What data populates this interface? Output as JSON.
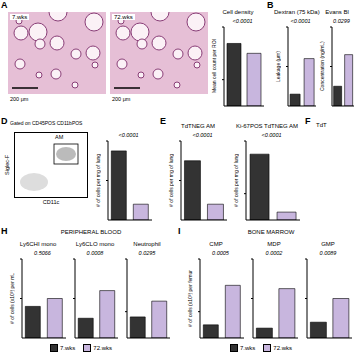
{
  "figure": {
    "panel_letters": [
      "A",
      "B",
      "D",
      "E",
      "F",
      "H",
      "I"
    ],
    "images": {
      "labels": [
        "7.wks",
        "72.wks"
      ],
      "scale_bar": "200 μm"
    },
    "flow": {
      "gate_label": "Gated on CD45POS CD11bPOS",
      "population": "AM",
      "x_label": "CD11c",
      "y_label": "Siglec-F"
    },
    "partial_title": "TdT",
    "groups": [
      "PERIPHERAL BLOOD",
      "BONE MARROW"
    ],
    "legend": [
      {
        "name": "7.wks",
        "color": "#333333"
      },
      {
        "name": "72.wks",
        "color": "#c8b6de"
      }
    ]
  },
  "chart_data": [
    {
      "type": "bar",
      "title": "Cell density",
      "annotation": "<0.0001",
      "y_label": "Mean cell count per ROI",
      "values": [
        95,
        80
      ],
      "ylim": [
        0,
        120
      ],
      "yticks": [
        0,
        40,
        80,
        120
      ],
      "tick_labels": false
    },
    {
      "type": "bar",
      "title": "Dextran (75 kDa)",
      "annotation": "<0.0001",
      "y_label": "Leakage (μm)",
      "values": [
        15,
        60
      ],
      "ylim": [
        0,
        100
      ],
      "yticks": [
        0,
        50,
        100
      ],
      "tick_labels": false
    },
    {
      "type": "bar",
      "title": "Evans Bl",
      "annotation": "0.0299",
      "y_label": "Concentration (ng/mL)",
      "values": [
        5,
        13
      ],
      "ylim": [
        0,
        20
      ],
      "yticks": [
        0,
        10,
        20
      ],
      "tick_labels": false
    },
    {
      "type": "bar",
      "annotation": "<0.0001",
      "y_label": "# of cells per mg of lung",
      "values": [
        350,
        80
      ],
      "ylim": [
        0,
        400
      ],
      "yticks": [
        0,
        200,
        400
      ],
      "tick_labels": false
    },
    {
      "type": "bar",
      "title": "TdTNEG AM",
      "annotation": "<0.0001",
      "y_label": "# of cells per mg of lung",
      "values": [
        150,
        40
      ],
      "ylim": [
        0,
        200
      ],
      "yticks": [
        0,
        100,
        200
      ],
      "tick_labels": false
    },
    {
      "type": "bar",
      "title": "Ki-67POS TdTNEG AM",
      "annotation": "<0.0001",
      "y_label": "# of cells per mg of lung",
      "values": [
        25,
        3
      ],
      "ylim": [
        0,
        30
      ],
      "yticks": [
        0,
        10,
        20,
        30
      ],
      "tick_labels": false
    },
    {
      "type": "bar",
      "title": "Ly6CHI mono",
      "annotation": "0.5066",
      "y_label": "# of cells (x10³) per mL",
      "values": [
        4,
        5
      ],
      "ylim": [
        0,
        10
      ],
      "yticks": [
        0,
        5,
        10
      ],
      "tick_labels": false
    },
    {
      "type": "bar",
      "title": "Ly6CLO mono",
      "annotation": "0.0008",
      "values": [
        5,
        12
      ],
      "ylim": [
        0,
        20
      ],
      "yticks": [
        0,
        10,
        20
      ],
      "tick_labels": false
    },
    {
      "type": "bar",
      "title": "Neutrophil",
      "annotation": "0.0295",
      "values": [
        8,
        14
      ],
      "ylim": [
        0,
        30
      ],
      "yticks": [
        0,
        10,
        20,
        30
      ],
      "tick_labels": false
    },
    {
      "type": "bar",
      "title": "CMP",
      "annotation": "0.0005",
      "y_label": "# of cells (x10³) per femur",
      "values": [
        1,
        4
      ],
      "ylim": [
        0,
        6
      ],
      "yticks": [
        0,
        2,
        4,
        6
      ],
      "tick_labels": false
    },
    {
      "type": "bar",
      "title": "MDP",
      "annotation": "0.0002",
      "values": [
        1,
        5
      ],
      "ylim": [
        0,
        8
      ],
      "yticks": [
        0,
        4,
        8
      ],
      "tick_labels": false
    },
    {
      "type": "bar",
      "title": "GMP",
      "annotation": "0.0089",
      "values": [
        2,
        5
      ],
      "ylim": [
        0,
        10
      ],
      "yticks": [
        0,
        5,
        10
      ],
      "tick_labels": false
    }
  ]
}
